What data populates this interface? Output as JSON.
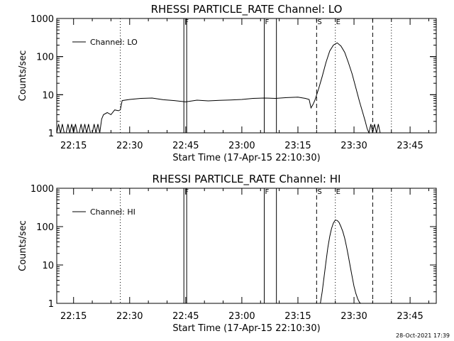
{
  "stamp": "28-Oct-2021 17:39",
  "chart_data": [
    {
      "type": "line",
      "title": "RHESSI PARTICLE_RATE Channel: LO",
      "xlabel": "Start Time (17-Apr-15 22:10:30)",
      "ylabel": "Counts/sec",
      "yscale": "log",
      "ylim": [
        1,
        1000
      ],
      "xlim": [
        "22:10:30",
        "23:52:00"
      ],
      "xticks": [
        "22:15",
        "22:30",
        "22:45",
        "23:00",
        "23:15",
        "23:30",
        "23:45"
      ],
      "yticks": [
        "1",
        "10",
        "100",
        "1000"
      ],
      "legend": {
        "label": "Channel: LO",
        "position": "top-left"
      },
      "markers": [
        {
          "label": "",
          "x": "22:27:30",
          "style": "dotted"
        },
        {
          "label": "F",
          "x": "22:44:30",
          "style": "solid"
        },
        {
          "label": "",
          "x": "22:45:15",
          "style": "solid"
        },
        {
          "label": "F",
          "x": "23:06:00",
          "style": "solid"
        },
        {
          "label": "",
          "x": "23:09:15",
          "style": "solid"
        },
        {
          "label": "S",
          "x": "23:20:00",
          "style": "dashed"
        },
        {
          "label": "E",
          "x": "23:25:00",
          "style": "dotted"
        },
        {
          "label": "",
          "x": "23:35:00",
          "style": "dashed"
        },
        {
          "label": "",
          "x": "23:40:00",
          "style": "dotted"
        }
      ],
      "series": [
        {
          "x": [
            "22:10:30",
            "22:11:00",
            "22:11:30",
            "22:12:00",
            "22:12:30",
            "22:13:00",
            "22:13:30",
            "22:14:00",
            "22:14:30",
            "22:15:00",
            "22:15:30",
            "22:16:00",
            "22:16:30",
            "22:17:00",
            "22:17:30",
            "22:18:00",
            "22:18:30",
            "22:19:00",
            "22:19:30",
            "22:20:00",
            "22:20:30",
            "22:21:00",
            "22:21:30",
            "22:22:00",
            "22:22:30",
            "22:23:00",
            "22:24:00",
            "22:25:00",
            "22:26:00",
            "22:27:00",
            "22:27:30",
            "22:28:00",
            "22:30:00",
            "22:33:00",
            "22:36:00",
            "22:39:00",
            "22:42:00",
            "22:45:00",
            "22:48:00",
            "22:51:00",
            "22:54:00",
            "22:57:00",
            "23:00:00",
            "23:03:00",
            "23:06:00",
            "23:09:00",
            "23:12:00",
            "23:15:00",
            "23:17:00",
            "23:18:00",
            "23:18:30",
            "23:19:00",
            "23:19:30",
            "23:20:30",
            "23:21:30",
            "23:22:30",
            "23:23:30",
            "23:24:30",
            "23:25:30",
            "23:26:30",
            "23:27:30",
            "23:28:30",
            "23:29:30",
            "23:30:30",
            "23:31:30",
            "23:32:30",
            "23:33:00",
            "23:33:30",
            "23:34:00",
            "23:34:30",
            "23:35:00",
            "23:35:30",
            "23:36:00",
            "23:36:30",
            "23:37:00"
          ],
          "y": [
            1.0,
            1.7,
            1.0,
            1.7,
            1.0,
            1.0,
            1.7,
            1.0,
            1.7,
            1.0,
            1.7,
            1.0,
            1.0,
            1.7,
            1.0,
            1.7,
            1.0,
            1.7,
            1.0,
            1.0,
            1.7,
            1.0,
            1.7,
            1.0,
            2.3,
            3.0,
            3.4,
            3.0,
            4.0,
            3.8,
            4.0,
            7.0,
            7.5,
            8.0,
            8.2,
            7.4,
            7.0,
            6.5,
            7.2,
            6.9,
            7.1,
            7.3,
            7.5,
            8.0,
            8.2,
            8.0,
            8.4,
            8.6,
            8.0,
            7.5,
            4.5,
            5.5,
            7.0,
            14,
            30,
            70,
            140,
            200,
            230,
            190,
            130,
            70,
            35,
            15,
            6.5,
            3.0,
            2.0,
            1.3,
            1.0,
            1.7,
            1.0,
            1.7,
            1.0,
            1.7,
            1.0
          ]
        }
      ]
    },
    {
      "type": "line",
      "title": "RHESSI PARTICLE_RATE Channel: HI",
      "xlabel": "Start Time (17-Apr-15 22:10:30)",
      "ylabel": "Counts/sec",
      "yscale": "log",
      "ylim": [
        1,
        1000
      ],
      "xlim": [
        "22:10:30",
        "23:52:00"
      ],
      "xticks": [
        "22:15",
        "22:30",
        "22:45",
        "23:00",
        "23:15",
        "23:30",
        "23:45"
      ],
      "yticks": [
        "1",
        "10",
        "100",
        "1000"
      ],
      "legend": {
        "label": "Channel: HI",
        "position": "top-left"
      },
      "markers": [
        {
          "label": "",
          "x": "22:27:30",
          "style": "dotted"
        },
        {
          "label": "F",
          "x": "22:44:30",
          "style": "solid"
        },
        {
          "label": "",
          "x": "22:45:15",
          "style": "solid"
        },
        {
          "label": "F",
          "x": "23:06:00",
          "style": "solid"
        },
        {
          "label": "",
          "x": "23:09:15",
          "style": "solid"
        },
        {
          "label": "S",
          "x": "23:20:00",
          "style": "dashed"
        },
        {
          "label": "E",
          "x": "23:25:00",
          "style": "dotted"
        },
        {
          "label": "",
          "x": "23:35:00",
          "style": "dashed"
        },
        {
          "label": "",
          "x": "23:40:00",
          "style": "dotted"
        }
      ],
      "series": [
        {
          "x": [
            "23:21:00",
            "23:21:30",
            "23:22:00",
            "23:22:30",
            "23:23:00",
            "23:23:30",
            "23:24:00",
            "23:24:30",
            "23:25:00",
            "23:25:30",
            "23:26:00",
            "23:26:30",
            "23:27:00",
            "23:27:30",
            "23:28:00",
            "23:28:30",
            "23:29:00",
            "23:29:30",
            "23:30:00",
            "23:30:30",
            "23:31:00",
            "23:31:30",
            "23:31:50"
          ],
          "y": [
            1.0,
            2.0,
            5.0,
            12,
            28,
            55,
            90,
            125,
            148,
            145,
            128,
            100,
            75,
            50,
            30,
            17,
            9,
            5,
            2.8,
            1.8,
            1.3,
            1.05,
            1.0
          ]
        }
      ]
    }
  ]
}
